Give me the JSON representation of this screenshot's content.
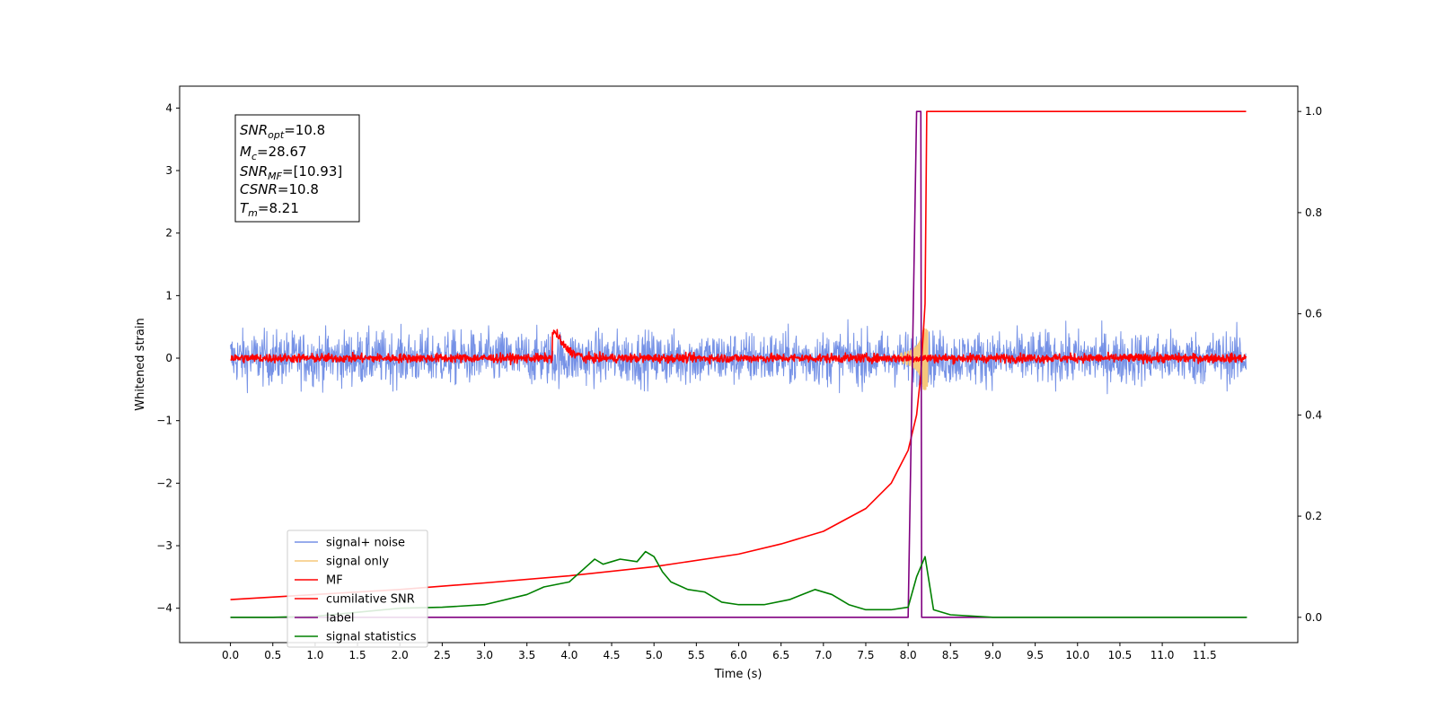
{
  "chart_data": {
    "type": "line",
    "xlabel": "Time (s)",
    "ylabel": "Whitened strain",
    "xlim": [
      -0.6,
      12.6
    ],
    "ylim": [
      -4.55,
      4.35
    ],
    "y2lim": [
      -0.05,
      1.05
    ],
    "x_ticks": [
      0.0,
      0.5,
      1.0,
      1.5,
      2.0,
      2.5,
      3.0,
      3.5,
      4.0,
      4.5,
      5.0,
      5.5,
      6.0,
      6.5,
      7.0,
      7.5,
      8.0,
      8.5,
      9.0,
      9.5,
      10.0,
      10.5,
      11.0,
      11.5
    ],
    "x_tick_labels": [
      "0.0",
      "0.5",
      "1.0",
      "1.5",
      "2.0",
      "2.5",
      "3.0",
      "3.5",
      "4.0",
      "4.5",
      "5.0",
      "5.5",
      "6.0",
      "6.5",
      "7.0",
      "7.5",
      "8.0",
      "8.5",
      "9.0",
      "9.5",
      "10.0",
      "10.5",
      "11.0",
      "11.5"
    ],
    "y_ticks": [
      -4,
      -3,
      -2,
      -1,
      0,
      1,
      2,
      3,
      4
    ],
    "y_tick_labels": [
      "−4",
      "−3",
      "−2",
      "−1",
      "0",
      "1",
      "2",
      "3",
      "4"
    ],
    "y2_ticks": [
      0.0,
      0.2,
      0.4,
      0.6,
      0.8,
      1.0
    ],
    "y2_tick_labels": [
      "0.0",
      "0.2",
      "0.4",
      "0.6",
      "0.8",
      "1.0"
    ],
    "grid": false,
    "legend_position": "lower-left",
    "annotation": {
      "snr_opt": {
        "base": "SNR",
        "sub": "opt",
        "value": "=10.8"
      },
      "mc": {
        "base": "M",
        "sub": "c",
        "value": "=28.67"
      },
      "snr_mf": {
        "base": "SNR",
        "sub": "MF",
        "value": "=[10.93]"
      },
      "csnr": {
        "base": "CSNR",
        "value": "=10.8"
      },
      "tm": {
        "base": "T",
        "sub": "m",
        "value": "=8.21"
      }
    },
    "series": [
      {
        "name": "signal+ noise",
        "color": "#7591e6",
        "axis": "left",
        "kind": "noise",
        "amplitude": 0.55,
        "x_range": [
          0.0,
          11.99
        ]
      },
      {
        "name": "signal only",
        "color": "#f6c77a",
        "axis": "left",
        "kind": "chirp",
        "peak_time": 8.21,
        "peak_amplitude": 0.5
      },
      {
        "name": "MF",
        "color": "#ff0000",
        "axis": "left",
        "kind": "noise",
        "amplitude": 0.09,
        "bump": {
          "x": 3.85,
          "height": 0.4
        },
        "x_range": [
          0.0,
          11.99
        ]
      },
      {
        "name": "cumilative SNR",
        "color": "#ff0000",
        "axis": "right",
        "x": [
          0.0,
          1.0,
          2.0,
          3.0,
          4.0,
          5.0,
          6.0,
          6.5,
          7.0,
          7.5,
          7.8,
          8.0,
          8.1,
          8.15,
          8.2,
          8.22,
          11.99
        ],
        "y": [
          0.035,
          0.045,
          0.055,
          0.068,
          0.082,
          0.1,
          0.125,
          0.145,
          0.17,
          0.215,
          0.265,
          0.33,
          0.4,
          0.48,
          0.62,
          1.0,
          1.0
        ]
      },
      {
        "name": "label",
        "color": "#800080",
        "axis": "right",
        "x": [
          0.0,
          8.0,
          8.1,
          8.15,
          8.16,
          11.99
        ],
        "y": [
          0.0,
          0.0,
          1.0,
          1.0,
          0.0,
          0.0
        ]
      },
      {
        "name": "signal statistics",
        "color": "#008000",
        "axis": "right",
        "x": [
          0.0,
          0.5,
          1.0,
          1.5,
          2.0,
          2.5,
          3.0,
          3.5,
          3.7,
          4.0,
          4.2,
          4.3,
          4.4,
          4.5,
          4.6,
          4.8,
          4.9,
          5.0,
          5.1,
          5.2,
          5.4,
          5.6,
          5.8,
          6.0,
          6.3,
          6.6,
          6.9,
          7.1,
          7.3,
          7.5,
          7.8,
          8.0,
          8.1,
          8.2,
          8.3,
          8.5,
          9.0,
          12.0
        ],
        "y": [
          0.0,
          0.0,
          0.002,
          0.01,
          0.018,
          0.02,
          0.025,
          0.045,
          0.06,
          0.07,
          0.1,
          0.115,
          0.105,
          0.11,
          0.115,
          0.11,
          0.13,
          0.12,
          0.09,
          0.07,
          0.055,
          0.05,
          0.03,
          0.025,
          0.025,
          0.035,
          0.055,
          0.045,
          0.025,
          0.015,
          0.015,
          0.02,
          0.08,
          0.12,
          0.015,
          0.005,
          0.0,
          0.0
        ]
      }
    ]
  }
}
